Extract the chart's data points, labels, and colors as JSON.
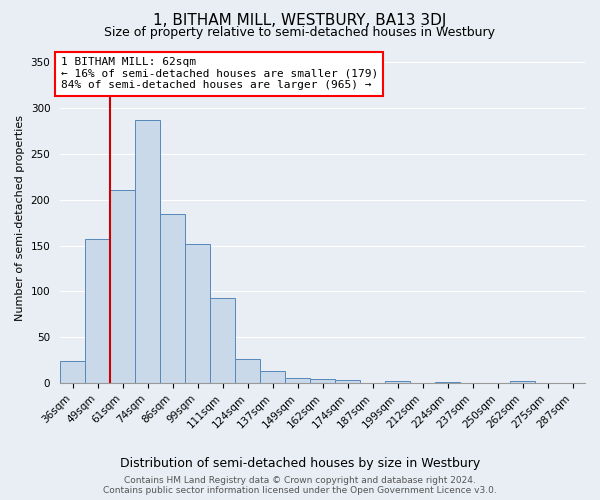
{
  "title": "1, BITHAM MILL, WESTBURY, BA13 3DJ",
  "subtitle": "Size of property relative to semi-detached houses in Westbury",
  "xlabel": "Distribution of semi-detached houses by size in Westbury",
  "ylabel": "Number of semi-detached properties",
  "footer_line1": "Contains HM Land Registry data © Crown copyright and database right 2024.",
  "footer_line2": "Contains public sector information licensed under the Open Government Licence v3.0.",
  "categories": [
    "36sqm",
    "49sqm",
    "61sqm",
    "74sqm",
    "86sqm",
    "99sqm",
    "111sqm",
    "124sqm",
    "137sqm",
    "149sqm",
    "162sqm",
    "174sqm",
    "187sqm",
    "199sqm",
    "212sqm",
    "224sqm",
    "237sqm",
    "250sqm",
    "262sqm",
    "275sqm",
    "287sqm"
  ],
  "values": [
    24,
    157,
    210,
    287,
    184,
    152,
    93,
    27,
    14,
    6,
    5,
    4,
    0,
    3,
    0,
    2,
    0,
    0,
    3,
    0,
    0
  ],
  "bar_color": "#c9d9ea",
  "bar_edge_color": "#5588bb",
  "vline_color": "#cc0000",
  "vline_index": 2,
  "annotation_title": "1 BITHAM MILL: 62sqm",
  "annotation_line1": "← 16% of semi-detached houses are smaller (179)",
  "annotation_line2": "84% of semi-detached houses are larger (965) →",
  "ylim": [
    0,
    360
  ],
  "yticks": [
    0,
    50,
    100,
    150,
    200,
    250,
    300,
    350
  ],
  "bg_color": "#e8eef4",
  "plot_bg_color": "#e8eef4",
  "title_fontsize": 11,
  "subtitle_fontsize": 9,
  "xlabel_fontsize": 9,
  "ylabel_fontsize": 8,
  "tick_fontsize": 7.5,
  "annotation_fontsize": 8,
  "footer_fontsize": 6.5
}
